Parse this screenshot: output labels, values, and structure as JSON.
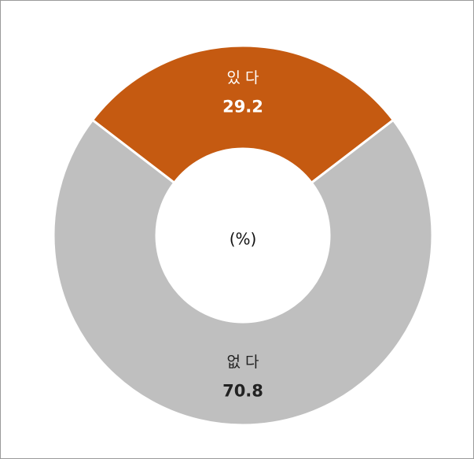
{
  "chart_data": {
    "type": "donut",
    "categories": [
      "있 다",
      "없 다"
    ],
    "values": [
      29.2,
      70.8
    ],
    "colors": [
      "#c55a11",
      "#bfbfbf"
    ],
    "center_label": "(%)"
  }
}
